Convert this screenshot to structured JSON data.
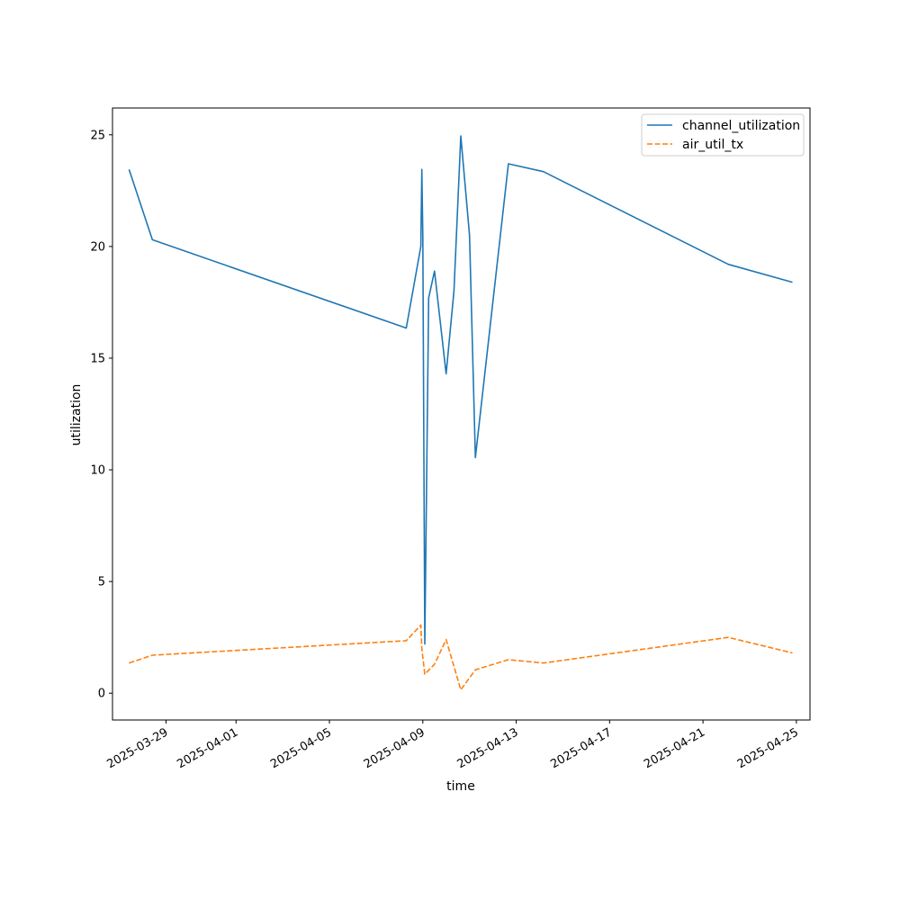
{
  "chart_data": {
    "type": "line",
    "title": "",
    "xlabel": "time",
    "ylabel": "utilization",
    "xlim": [
      "2025-03-26T17:00",
      "2025-04-25T14:00"
    ],
    "ylim": [
      -1.2,
      26.2
    ],
    "x_ticks": [
      "2025-03-29",
      "2025-04-01",
      "2025-04-05",
      "2025-04-09",
      "2025-04-13",
      "2025-04-17",
      "2025-04-21",
      "2025-04-25"
    ],
    "y_ticks": [
      "0",
      "5",
      "10",
      "15",
      "20",
      "25"
    ],
    "grid": false,
    "legend": "top-right",
    "series": [
      {
        "name": "channel_utilization",
        "color": "#1f77b4",
        "style": "solid",
        "points": [
          [
            "2025-03-27T10:00",
            23.45
          ],
          [
            "2025-03-28T10:00",
            20.3
          ],
          [
            "2025-04-08T07:00",
            16.35
          ],
          [
            "2025-04-08T22:00",
            20.0
          ],
          [
            "2025-04-08T23:00",
            23.45
          ],
          [
            "2025-04-09T00:00",
            20.5
          ],
          [
            "2025-04-09T02:00",
            2.2
          ],
          [
            "2025-04-09T06:00",
            17.7
          ],
          [
            "2025-04-09T12:00",
            18.9
          ],
          [
            "2025-04-10T00:00",
            14.3
          ],
          [
            "2025-04-10T08:00",
            18.0
          ],
          [
            "2025-04-10T15:00",
            24.95
          ],
          [
            "2025-04-11T00:00",
            20.5
          ],
          [
            "2025-04-11T06:00",
            10.55
          ],
          [
            "2025-04-12T16:00",
            23.7
          ],
          [
            "2025-04-14T04:00",
            23.35
          ],
          [
            "2025-04-22T02:00",
            19.2
          ],
          [
            "2025-04-24T20:00",
            18.4
          ]
        ]
      },
      {
        "name": "air_util_tx",
        "color": "#ff7f0e",
        "style": "dashed",
        "points": [
          [
            "2025-03-27T10:00",
            1.35
          ],
          [
            "2025-03-28T10:00",
            1.7
          ],
          [
            "2025-04-08T07:00",
            2.35
          ],
          [
            "2025-04-08T22:00",
            3.05
          ],
          [
            "2025-04-08T23:00",
            2.0
          ],
          [
            "2025-04-09T02:00",
            0.85
          ],
          [
            "2025-04-09T12:00",
            1.3
          ],
          [
            "2025-04-10T00:00",
            2.4
          ],
          [
            "2025-04-10T15:00",
            0.15
          ],
          [
            "2025-04-11T06:00",
            1.05
          ],
          [
            "2025-04-12T16:00",
            1.5
          ],
          [
            "2025-04-14T04:00",
            1.35
          ],
          [
            "2025-04-22T02:00",
            2.5
          ],
          [
            "2025-04-24T20:00",
            1.8
          ]
        ]
      }
    ]
  }
}
